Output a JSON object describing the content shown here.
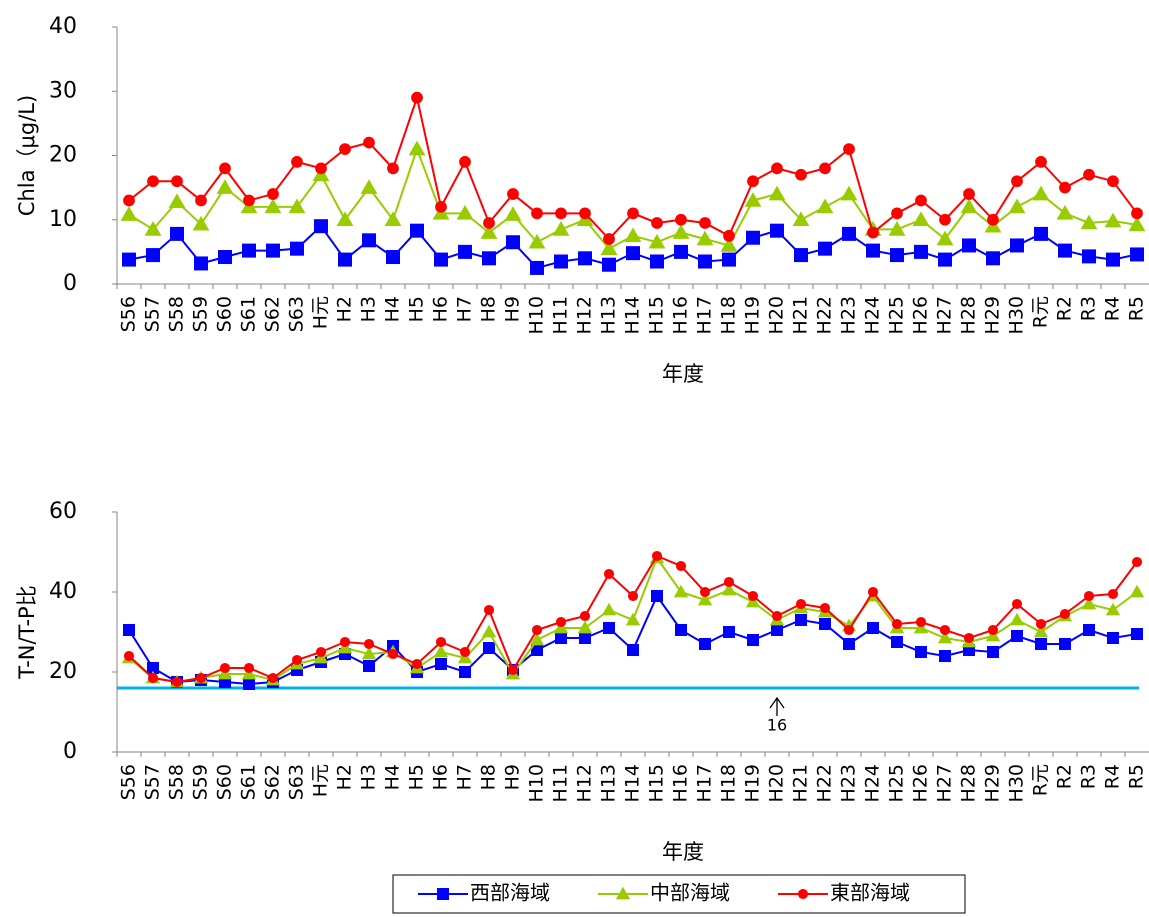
{
  "chart_data": [
    {
      "type": "line",
      "ylabel": "Chla（μg/L)",
      "xlabel": "年度",
      "categories": [
        "S56",
        "S57",
        "S58",
        "S59",
        "S60",
        "S61",
        "S62",
        "S63",
        "H元",
        "H2",
        "H3",
        "H4",
        "H5",
        "H6",
        "H7",
        "H8",
        "H9",
        "H10",
        "H11",
        "H12",
        "H13",
        "H14",
        "H15",
        "H16",
        "H17",
        "H18",
        "H19",
        "H20",
        "H21",
        "H22",
        "H23",
        "H24",
        "H25",
        "H26",
        "H27",
        "H28",
        "H29",
        "H30",
        "R元",
        "R2",
        "R3",
        "R4",
        "R5"
      ],
      "ylim": [
        0,
        40
      ],
      "yticks": [
        0,
        10,
        20,
        30,
        40
      ],
      "grid": false,
      "series": [
        {
          "color": "#0000ff",
          "marker": "square",
          "values": [
            3.8,
            4.5,
            7.8,
            3.2,
            4.2,
            5.2,
            5.2,
            5.5,
            9.0,
            3.8,
            6.8,
            4.2,
            8.3,
            3.8,
            5.0,
            4.0,
            6.5,
            2.5,
            3.5,
            4.0,
            3.0,
            4.8,
            3.5,
            5.0,
            3.5,
            3.8,
            7.2,
            8.3,
            4.5,
            5.5,
            7.8,
            5.2,
            4.5,
            5.0,
            3.8,
            6.0,
            4.0,
            6.0,
            7.8,
            5.2,
            4.3,
            3.8,
            4.6
          ]
        },
        {
          "color": "#99cc00",
          "marker": "triangle",
          "values": [
            10.8,
            8.5,
            12.8,
            9.3,
            15.0,
            12.0,
            12.0,
            12.0,
            17.0,
            10.0,
            15.0,
            10.0,
            21.0,
            11.0,
            11.0,
            8.0,
            10.8,
            6.5,
            8.5,
            10.0,
            5.5,
            7.5,
            6.5,
            8.0,
            7.0,
            6.0,
            13.0,
            14.0,
            10.0,
            12.0,
            14.0,
            8.5,
            8.5,
            10.0,
            7.0,
            12.0,
            9.0,
            12.0,
            14.0,
            11.0,
            9.5,
            9.8,
            9.2
          ]
        },
        {
          "color": "#ff0000",
          "marker": "circle",
          "values": [
            13.0,
            16.0,
            16.0,
            13.0,
            18.0,
            13.0,
            14.0,
            19.0,
            18.0,
            21.0,
            22.0,
            18.0,
            29.0,
            12.0,
            19.0,
            9.5,
            14.0,
            11.0,
            11.0,
            11.0,
            7.0,
            11.0,
            9.5,
            10.0,
            9.5,
            7.5,
            16.0,
            18.0,
            17.0,
            18.0,
            21.0,
            8.0,
            11.0,
            13.0,
            10.0,
            14.0,
            10.0,
            16.0,
            19.0,
            15.0,
            17.0,
            16.0,
            11.0
          ]
        }
      ]
    },
    {
      "type": "line",
      "ylabel": "T-N/T-P比",
      "xlabel": "年度",
      "categories": [
        "S56",
        "S57",
        "S58",
        "S59",
        "S60",
        "S61",
        "S62",
        "S63",
        "H元",
        "H2",
        "H3",
        "H4",
        "H5",
        "H6",
        "H7",
        "H8",
        "H9",
        "H10",
        "H11",
        "H12",
        "H13",
        "H14",
        "H15",
        "H16",
        "H17",
        "H18",
        "H19",
        "H20",
        "H21",
        "H22",
        "H23",
        "H24",
        "H25",
        "H26",
        "H27",
        "H28",
        "H29",
        "H30",
        "R元",
        "R2",
        "R3",
        "R4",
        "R5"
      ],
      "ylim": [
        0,
        60
      ],
      "yticks": [
        0,
        20,
        40,
        60
      ],
      "grid": false,
      "hline": {
        "value": 16,
        "color": "#00b0f0"
      },
      "legend": "bottom",
      "series": [
        {
          "name": "西部海域",
          "color": "#0000ff",
          "marker": "square",
          "values": [
            30.5,
            21,
            17.5,
            18,
            17.5,
            17,
            17.5,
            20.5,
            22.5,
            24.5,
            21.5,
            26.5,
            20,
            22,
            20,
            26,
            20.5,
            25.5,
            28.5,
            28.5,
            31,
            25.5,
            39,
            30.5,
            27,
            30,
            28,
            30.5,
            33,
            32,
            27,
            31,
            27.5,
            25,
            24,
            25.5,
            25,
            29,
            27,
            27,
            30.5,
            28.5,
            29.5
          ]
        },
        {
          "name": "中部海域",
          "color": "#99cc00",
          "marker": "triangle",
          "values": [
            23.5,
            18.5,
            17.5,
            18.5,
            19.5,
            19.5,
            18,
            22,
            23.5,
            26,
            24.5,
            25,
            21,
            25,
            23.5,
            30,
            19.5,
            28,
            31,
            31,
            35.5,
            33,
            48.5,
            40,
            38,
            40.5,
            37.5,
            33,
            36,
            35,
            31.5,
            39,
            31,
            31,
            28.5,
            27.5,
            29,
            33,
            30,
            34,
            37,
            35.5,
            40
          ]
        },
        {
          "name": "東部海域",
          "color": "#ff0000",
          "marker": "circle",
          "values": [
            24,
            18.5,
            17.5,
            18.5,
            21,
            21,
            18.5,
            23,
            25,
            27.5,
            27,
            24.5,
            22,
            27.5,
            25,
            35.5,
            20.5,
            30.5,
            32.5,
            34,
            44.5,
            39,
            49,
            46.5,
            40,
            42.5,
            39,
            34,
            37,
            36,
            30.5,
            40,
            32,
            32.5,
            30.5,
            28.5,
            30.5,
            37,
            32,
            34.5,
            39,
            39.5,
            47.5
          ]
        }
      ]
    }
  ]
}
